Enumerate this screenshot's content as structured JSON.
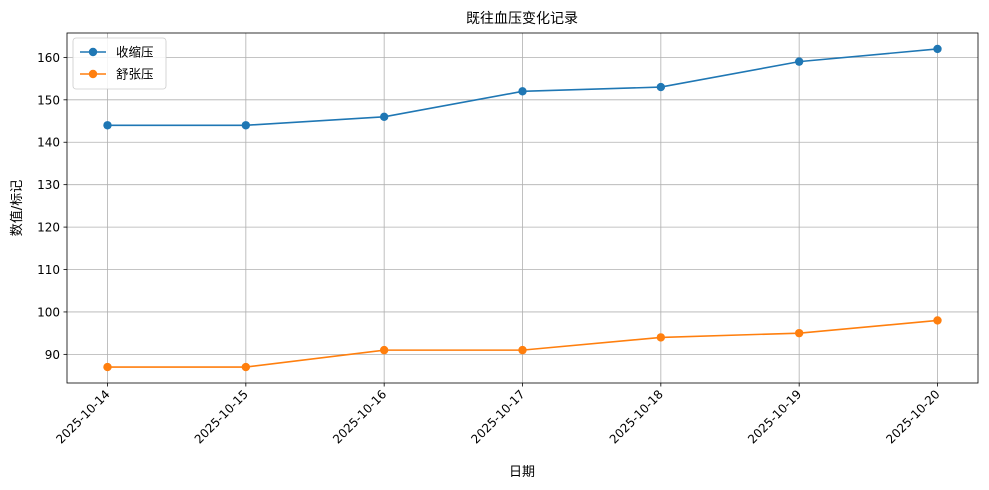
{
  "chart_data": {
    "type": "line",
    "title": "既往血压变化记录",
    "xlabel": "日期",
    "ylabel": "数值/标记",
    "categories": [
      "2025-10-14",
      "2025-10-15",
      "2025-10-16",
      "2025-10-17",
      "2025-10-18",
      "2025-10-19",
      "2025-10-20"
    ],
    "series": [
      {
        "name": "收缩压",
        "values": [
          144,
          144,
          146,
          152,
          153,
          159,
          162
        ],
        "color": "#1f77b4"
      },
      {
        "name": "舒张压",
        "values": [
          87,
          87,
          91,
          91,
          94,
          95,
          98
        ],
        "color": "#ff7f0e"
      }
    ],
    "yticks": [
      90,
      100,
      110,
      120,
      130,
      140,
      150,
      160
    ],
    "ylim": [
      83.25,
      165.75
    ],
    "grid": true,
    "legend": "top-left"
  }
}
